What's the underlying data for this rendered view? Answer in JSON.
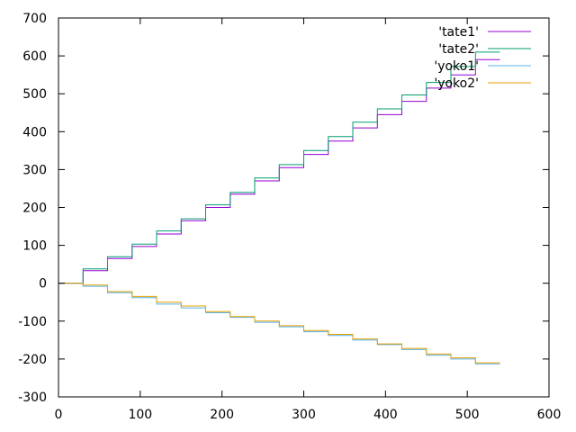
{
  "chart_data": {
    "type": "line",
    "title": "",
    "xlabel": "",
    "ylabel": "",
    "xlim": [
      0,
      600
    ],
    "ylim": [
      -300,
      700
    ],
    "xticks": [
      0,
      100,
      200,
      300,
      400,
      500,
      600
    ],
    "yticks": [
      -300,
      -200,
      -100,
      0,
      100,
      200,
      300,
      400,
      500,
      600,
      700
    ],
    "xtick_labels": [
      "0",
      "100",
      "200",
      "300",
      "400",
      "500",
      "600"
    ],
    "ytick_labels": [
      "-300",
      "-200",
      "-100",
      "0",
      "100",
      "200",
      "300",
      "400",
      "500",
      "600",
      "700"
    ],
    "grid": false,
    "legend_position": "top-right",
    "series": [
      {
        "name": "'tate1'",
        "color": "#9400d3",
        "x": [
          0,
          30,
          30,
          60,
          60,
          90,
          90,
          120,
          120,
          150,
          150,
          180,
          180,
          210,
          210,
          240,
          240,
          270,
          270,
          300,
          300,
          330,
          330,
          360,
          360,
          390,
          390,
          420,
          420,
          450,
          450,
          480,
          480,
          510,
          510,
          540
        ],
        "y": [
          0,
          0,
          33,
          33,
          65,
          65,
          97,
          97,
          130,
          130,
          165,
          165,
          200,
          200,
          235,
          235,
          270,
          270,
          305,
          305,
          340,
          340,
          375,
          375,
          410,
          410,
          445,
          445,
          480,
          480,
          515,
          515,
          550,
          550,
          590,
          590
        ]
      },
      {
        "name": "'tate2'",
        "color": "#009e73",
        "x": [
          0,
          30,
          30,
          60,
          60,
          90,
          90,
          120,
          120,
          150,
          150,
          180,
          180,
          210,
          210,
          240,
          240,
          270,
          270,
          300,
          300,
          330,
          330,
          360,
          360,
          390,
          390,
          420,
          420,
          450,
          450,
          480,
          480,
          510,
          510,
          540
        ],
        "y": [
          0,
          0,
          38,
          38,
          70,
          70,
          103,
          103,
          138,
          138,
          170,
          170,
          207,
          207,
          240,
          240,
          278,
          278,
          313,
          313,
          350,
          350,
          387,
          387,
          425,
          425,
          460,
          460,
          497,
          497,
          530,
          530,
          572,
          572,
          610,
          610
        ]
      },
      {
        "name": "'yoko1'",
        "color": "#56b4e9",
        "x": [
          0,
          30,
          30,
          60,
          60,
          90,
          90,
          120,
          120,
          150,
          150,
          180,
          180,
          210,
          210,
          240,
          240,
          270,
          270,
          300,
          300,
          330,
          330,
          360,
          360,
          390,
          390,
          420,
          420,
          450,
          450,
          480,
          480,
          510,
          510,
          540
        ],
        "y": [
          0,
          0,
          -8,
          -8,
          -25,
          -25,
          -38,
          -38,
          -55,
          -55,
          -65,
          -65,
          -78,
          -78,
          -90,
          -90,
          -103,
          -103,
          -115,
          -115,
          -128,
          -128,
          -138,
          -138,
          -150,
          -150,
          -162,
          -162,
          -175,
          -175,
          -190,
          -190,
          -200,
          -200,
          -213,
          -213
        ]
      },
      {
        "name": "'yoko2'",
        "color": "#e69f00",
        "x": [
          0,
          30,
          30,
          60,
          60,
          90,
          90,
          120,
          120,
          150,
          150,
          180,
          180,
          210,
          210,
          240,
          240,
          270,
          270,
          300,
          300,
          330,
          330,
          360,
          360,
          390,
          390,
          420,
          420,
          450,
          450,
          480,
          480,
          510,
          510,
          540
        ],
        "y": [
          0,
          0,
          -5,
          -5,
          -22,
          -22,
          -35,
          -35,
          -50,
          -50,
          -60,
          -60,
          -75,
          -75,
          -88,
          -88,
          -100,
          -100,
          -112,
          -112,
          -125,
          -125,
          -135,
          -135,
          -147,
          -147,
          -160,
          -160,
          -172,
          -172,
          -187,
          -187,
          -197,
          -197,
          -210,
          -210
        ]
      }
    ]
  }
}
